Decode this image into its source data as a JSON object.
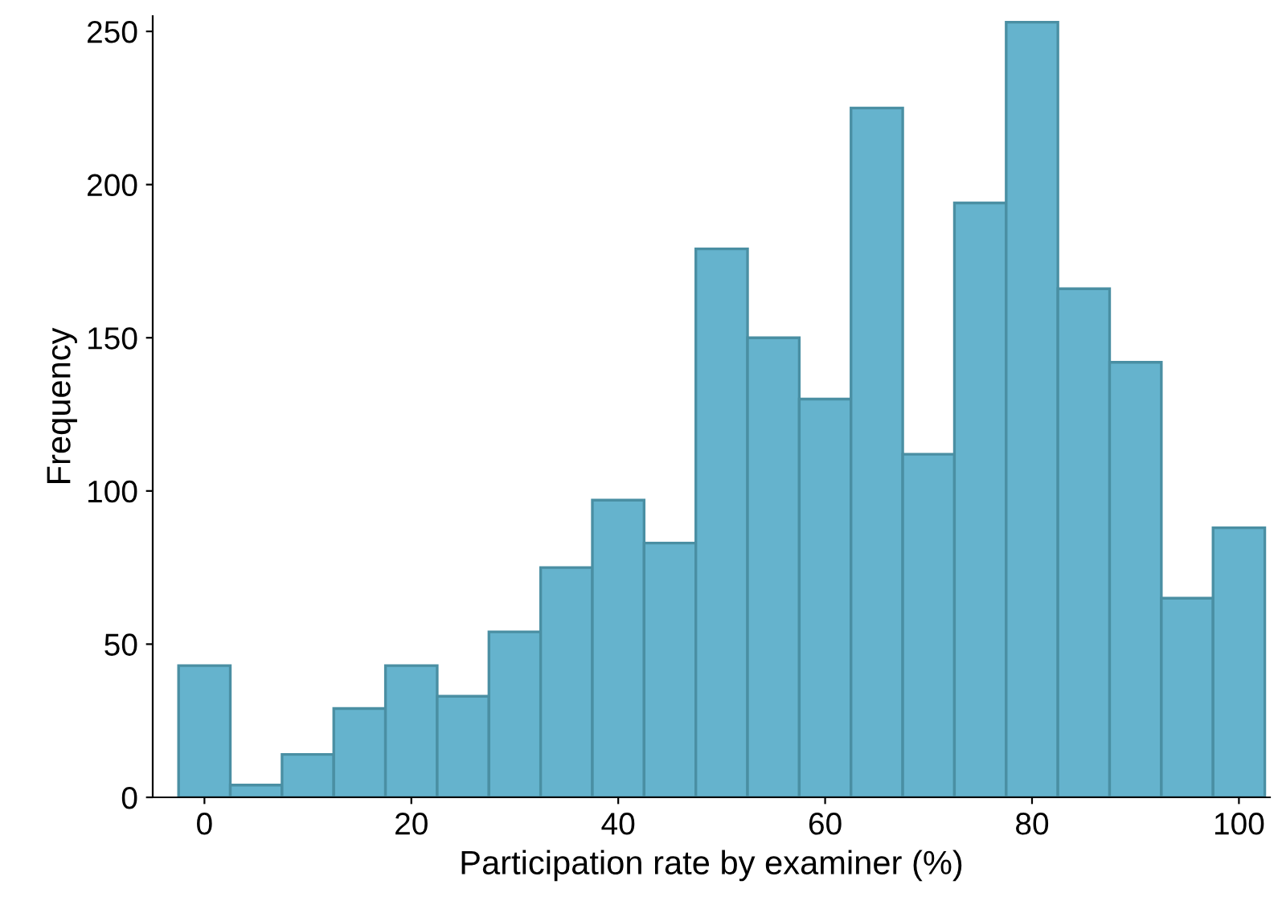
{
  "chart_data": {
    "type": "histogram",
    "xlabel": "Participation rate by examiner (%)",
    "ylabel": "Frequency",
    "bins": [
      -2.5,
      2.5,
      7.5,
      12.5,
      17.5,
      22.5,
      27.5,
      32.5,
      37.5,
      42.5,
      47.5,
      52.5,
      57.5,
      62.5,
      67.5,
      72.5,
      77.5,
      82.5,
      87.5,
      92.5,
      97.5,
      102.5
    ],
    "values": [
      43,
      4,
      14,
      29,
      43,
      33,
      54,
      75,
      97,
      83,
      179,
      150,
      130,
      225,
      112,
      194,
      253,
      166,
      142,
      65,
      88
    ],
    "color": "#65b3cd",
    "xlim": [
      -5,
      103
    ],
    "ylim": [
      0,
      255
    ],
    "xticks": [
      0,
      20,
      40,
      60,
      80,
      100
    ],
    "yticks": [
      0,
      50,
      100,
      150,
      200,
      250
    ],
    "grid": false,
    "legend": false
  }
}
